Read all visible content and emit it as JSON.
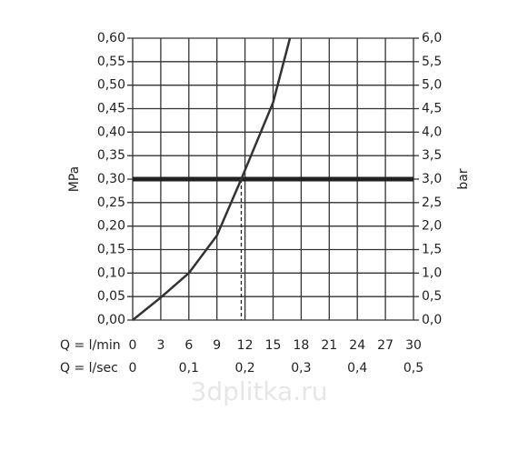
{
  "chart_data": {
    "type": "line",
    "x": [
      0,
      3,
      6,
      9,
      11.6,
      15,
      16.8
    ],
    "series": [
      {
        "name": "Q",
        "color": "#333333",
        "values": [
          0,
          0.048,
          0.1,
          0.18,
          0.3,
          0.463,
          0.6
        ]
      }
    ],
    "xlim": [
      0,
      30
    ],
    "xticks": [
      0,
      3,
      6,
      9,
      12,
      15,
      18,
      21,
      24,
      27,
      30
    ],
    "x_label": "Q = l/min",
    "x2lim": [
      0,
      0.5
    ],
    "x2ticks": [
      0,
      {
        "value": 0.1,
        "label": "0,1"
      },
      {
        "value": 0.2,
        "label": "0,2"
      },
      {
        "value": 0.3,
        "label": "0,3"
      },
      {
        "value": 0.4,
        "label": "0,4"
      },
      {
        "value": 0.5,
        "label": "0,5"
      }
    ],
    "x2_label": "Q = l/sec",
    "ylim": [
      0,
      0.6
    ],
    "yticks": [
      {
        "value": 0,
        "label": "0,00"
      },
      {
        "value": 0.05,
        "label": "0,05"
      },
      {
        "value": 0.1,
        "label": "0,10"
      },
      {
        "value": 0.15,
        "label": "0,15"
      },
      {
        "value": 0.2,
        "label": "0,20"
      },
      {
        "value": 0.25,
        "label": "0,25"
      },
      {
        "value": 0.3,
        "label": "0,30"
      },
      {
        "value": 0.35,
        "label": "0,35"
      },
      {
        "value": 0.4,
        "label": "0,40"
      },
      {
        "value": 0.45,
        "label": "0,45"
      },
      {
        "value": 0.5,
        "label": "0,50"
      },
      {
        "value": 0.55,
        "label": "0,55"
      },
      {
        "value": 0.6,
        "label": "0,60"
      }
    ],
    "y_label": "MPa",
    "y2lim": [
      0,
      6
    ],
    "y2ticks": [
      {
        "value": 0,
        "label": "0,0"
      },
      {
        "value": 0.5,
        "label": "0,5"
      },
      {
        "value": 1,
        "label": "1,0"
      },
      {
        "value": 1.5,
        "label": "1,5"
      },
      {
        "value": 2,
        "label": "2,0"
      },
      {
        "value": 2.5,
        "label": "2,5"
      },
      {
        "value": 3,
        "label": "3,0"
      },
      {
        "value": 3.5,
        "label": "3,5"
      },
      {
        "value": 4,
        "label": "4,0"
      },
      {
        "value": 4.5,
        "label": "4,5"
      },
      {
        "value": 5,
        "label": "5,0"
      },
      {
        "value": 5.5,
        "label": "5,5"
      },
      {
        "value": 6,
        "label": "6,0"
      }
    ],
    "y2_label": "bar",
    "reference_y": 0.3,
    "reference_x": 11.6,
    "grid": true,
    "watermark": "3dplitka.ru"
  }
}
